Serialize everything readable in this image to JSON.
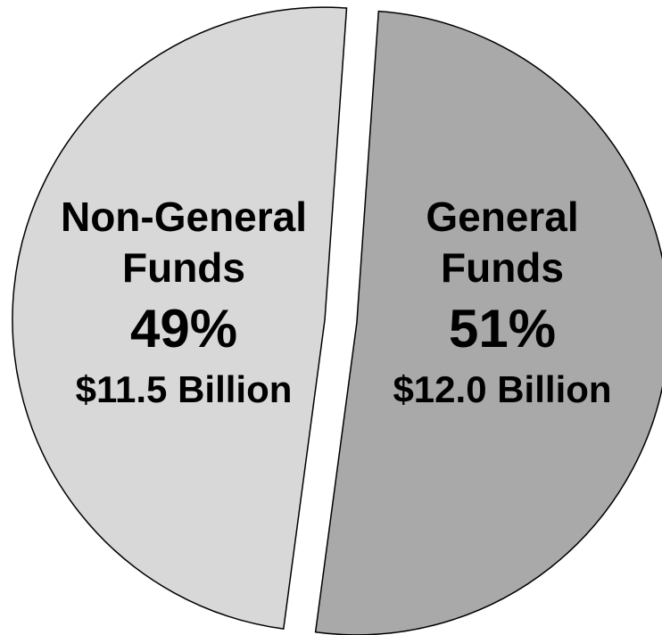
{
  "chart_data": {
    "type": "pie",
    "title": "",
    "slices": [
      {
        "name": "General Funds",
        "name_lines": [
          "General",
          "Funds"
        ],
        "percent": 51,
        "percent_label": "51%",
        "amount_label": "$12.0 Billion",
        "color": "#a9a9a9",
        "exploded": true
      },
      {
        "name": "Non-General Funds",
        "name_lines": [
          "Non-General",
          "Funds"
        ],
        "percent": 49,
        "percent_label": "49%",
        "amount_label": "$11.5 Billion",
        "color": "#d8d8d8",
        "exploded": true
      }
    ]
  }
}
